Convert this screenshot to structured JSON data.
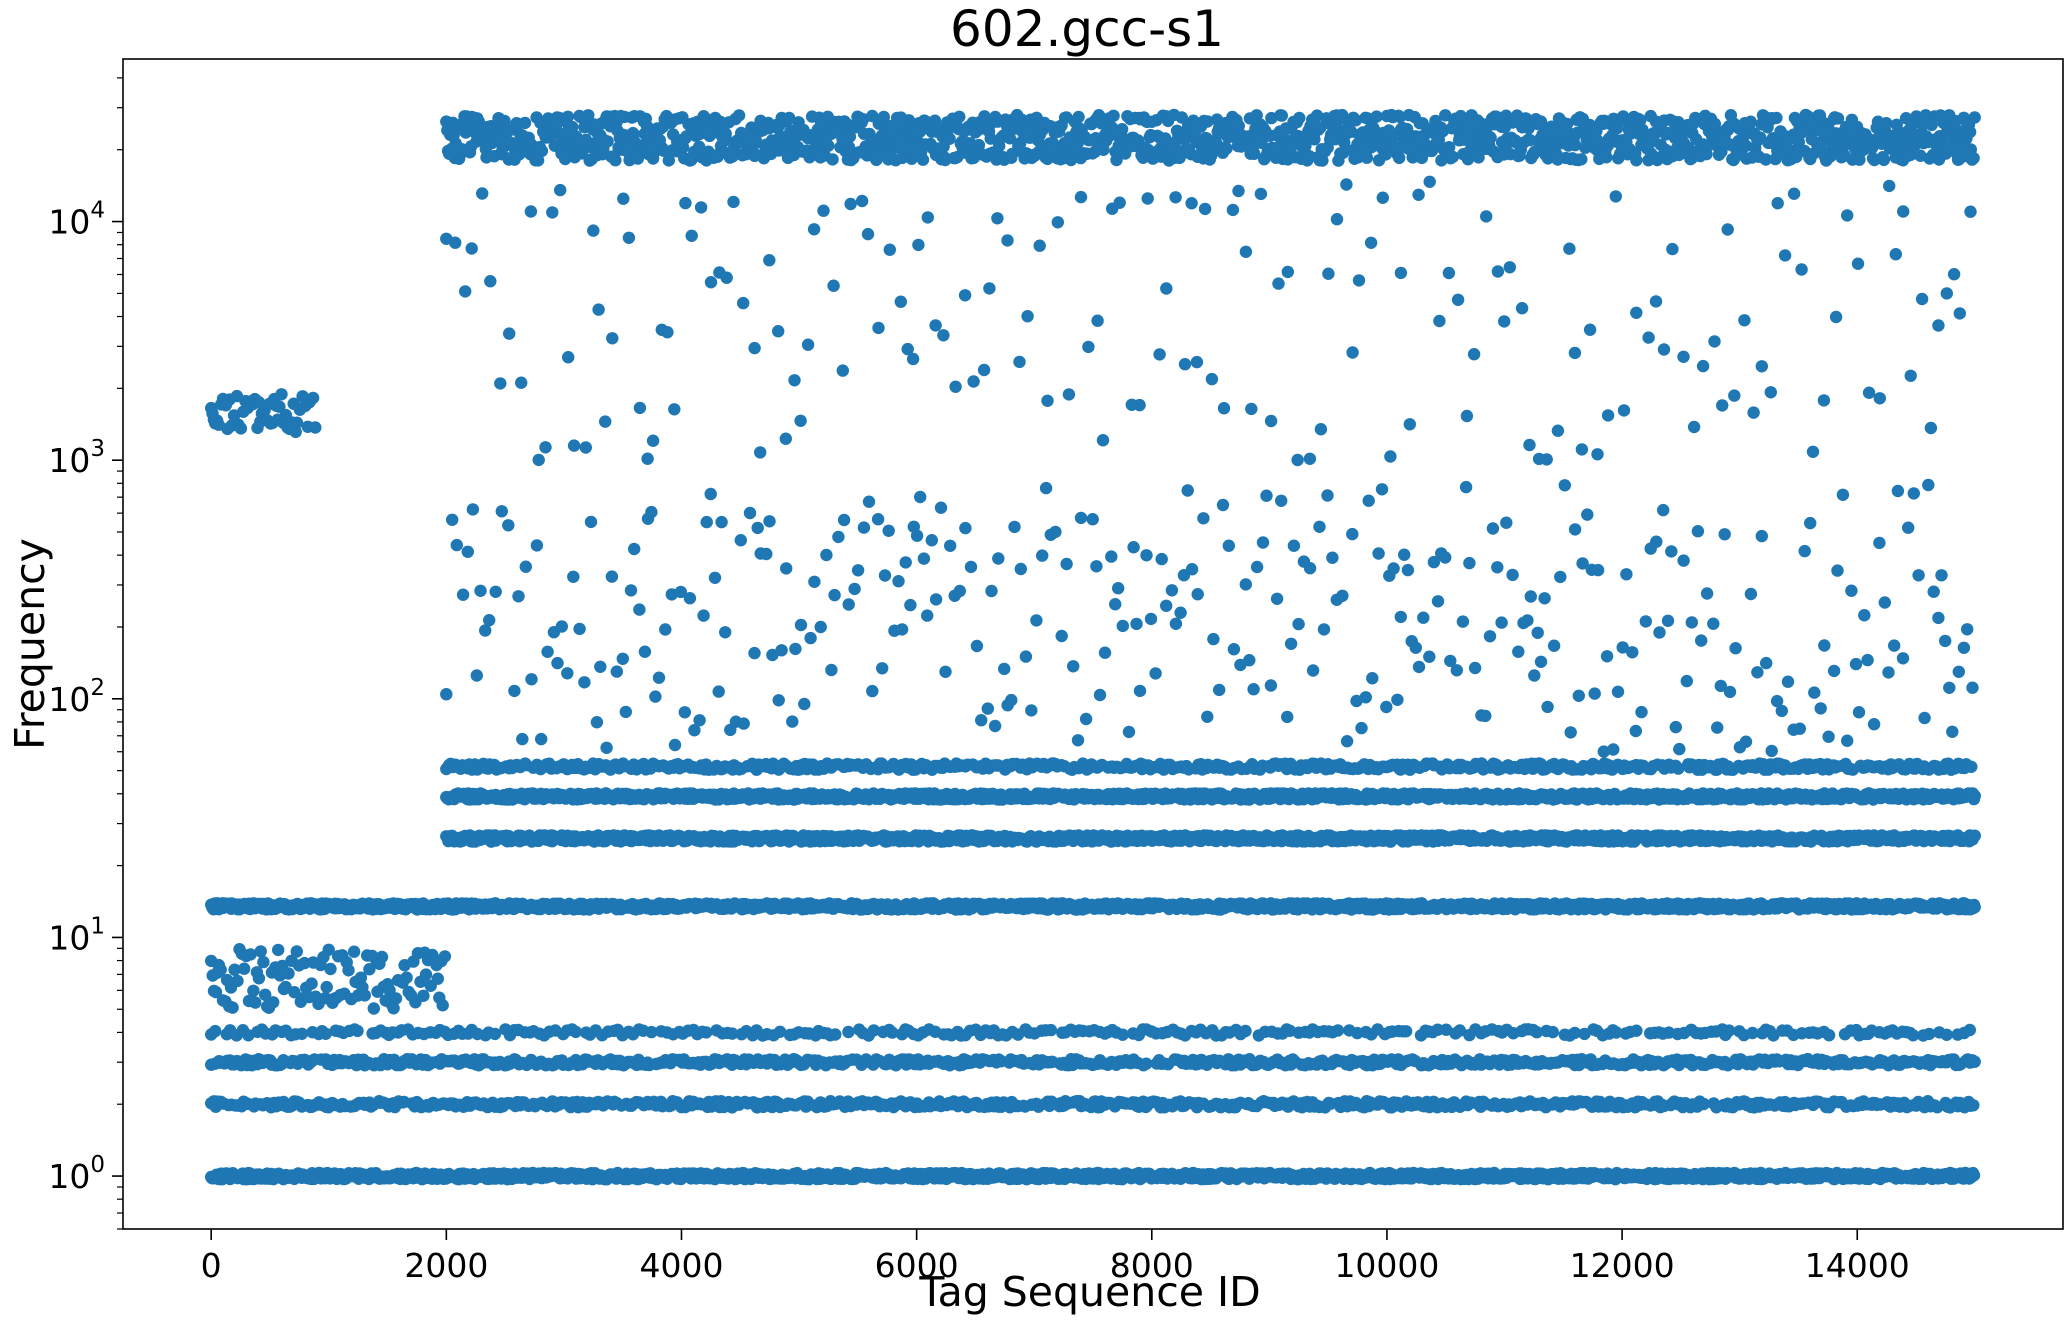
{
  "chart_data": {
    "type": "scatter",
    "title": "602.gcc-s1",
    "xlabel": "Tag Sequence ID",
    "ylabel": "Frequency",
    "x_scale": "linear",
    "y_scale": "log",
    "xlim": [
      -750,
      15750
    ],
    "ylim": [
      0.6,
      48000
    ],
    "x_ticks": [
      0,
      2000,
      4000,
      6000,
      8000,
      10000,
      12000,
      14000
    ],
    "x_tick_labels": [
      "0",
      "2000",
      "4000",
      "6000",
      "8000",
      "10000",
      "12000",
      "14000"
    ],
    "y_ticks": [
      1,
      10,
      100,
      1000,
      10000
    ],
    "y_tick_labels": [
      {
        "base": "10",
        "exp": "0"
      },
      {
        "base": "10",
        "exp": "1"
      },
      {
        "base": "10",
        "exp": "2"
      },
      {
        "base": "10",
        "exp": "3"
      },
      {
        "base": "10",
        "exp": "4"
      }
    ],
    "grid": false,
    "marker_color": "#1f77b4",
    "series": [
      {
        "x_range": [
          0,
          15000
        ],
        "bands": [
          {
            "x_range": [
              0,
              15000
            ],
            "y": 1,
            "density": "very dense"
          },
          {
            "x_range": [
              0,
              15000
            ],
            "y": 2,
            "density": "dense"
          },
          {
            "x_range": [
              0,
              15000
            ],
            "y": 3,
            "density": "dense"
          },
          {
            "x_range": [
              0,
              15000
            ],
            "y": 4,
            "density": "medium"
          },
          {
            "x_range": [
              0,
              2000
            ],
            "y": [
              5,
              9
            ],
            "density": "dense"
          },
          {
            "x_range": [
              0,
              15000
            ],
            "y": 13.5,
            "density": "very dense"
          },
          {
            "x_range": [
              2000,
              15000
            ],
            "y": 26,
            "density": "very dense"
          },
          {
            "x_range": [
              2000,
              15000
            ],
            "y": 39,
            "density": "very dense"
          },
          {
            "x_range": [
              2000,
              15000
            ],
            "y": 52,
            "density": "dense"
          },
          {
            "x_range": [
              2000,
              15000
            ],
            "y": [
              60,
              800
            ],
            "density": "medium"
          },
          {
            "x_range": [
              2000,
              15000
            ],
            "y": [
              1000,
              15000
            ],
            "density": "sparse"
          },
          {
            "x_range": [
              2000,
              15000
            ],
            "y": [
              18000,
              28000
            ],
            "density": "very dense"
          },
          {
            "x_range": [
              0,
              900
            ],
            "y": [
              1300,
              1900
            ],
            "density": "dense"
          }
        ]
      }
    ]
  }
}
